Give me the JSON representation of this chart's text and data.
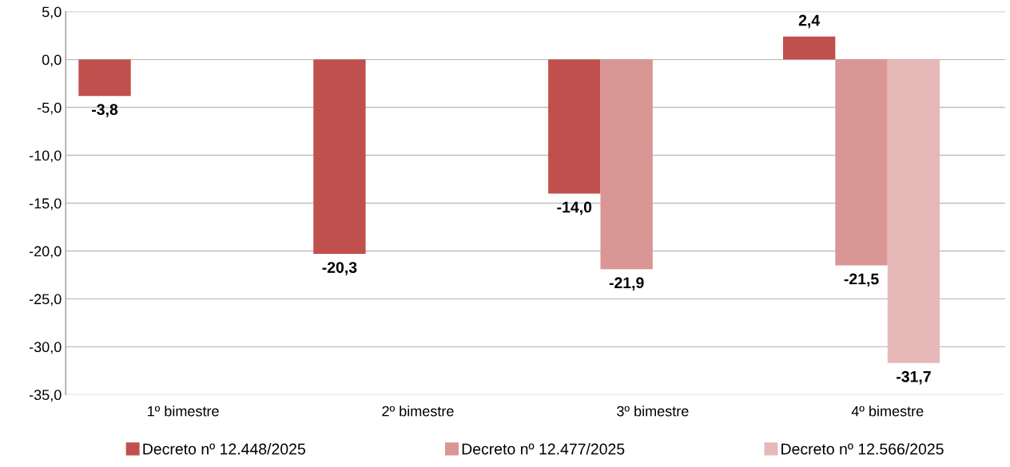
{
  "chart_data": {
    "type": "bar",
    "categories": [
      "1º bimestre",
      "2º bimestre",
      "3º bimestre",
      "4º bimestre"
    ],
    "series": [
      {
        "name": "Decreto nº 12.448/2025",
        "color": "#c0504d",
        "values": [
          -3.8,
          -20.3,
          -14.0,
          2.4
        ],
        "value_labels": [
          "-3,8",
          "-20,3",
          "-14,0",
          "2,4"
        ]
      },
      {
        "name": "Decreto nº 12.477/2025",
        "color": "#d99694",
        "values": [
          null,
          null,
          -21.9,
          -21.5
        ],
        "value_labels": [
          null,
          null,
          "-21,9",
          "-21,5"
        ]
      },
      {
        "name": "Decreto nº 12.566/2025",
        "color": "#e6b9b8",
        "values": [
          null,
          null,
          null,
          -31.7
        ],
        "value_labels": [
          null,
          null,
          null,
          "-31,7"
        ]
      }
    ],
    "ylim": [
      -35,
      5
    ],
    "yticks": [
      {
        "value": -35,
        "label": "-35,0"
      },
      {
        "value": -30,
        "label": "-30,0"
      },
      {
        "value": -25,
        "label": "-25,0"
      },
      {
        "value": -20,
        "label": "-20,0"
      },
      {
        "value": -15,
        "label": "-15,0"
      },
      {
        "value": -10,
        "label": "-10,0"
      },
      {
        "value": -5,
        "label": "-5,0"
      },
      {
        "value": 0,
        "label": "0,0"
      },
      {
        "value": 5,
        "label": "5,0"
      }
    ],
    "grid": "y",
    "legend": "bottom"
  }
}
